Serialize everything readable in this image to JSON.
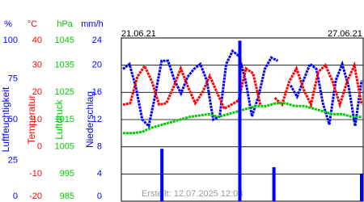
{
  "chart_data": {
    "type": "multi-axis-line",
    "date_labels": [
      "21.06.21",
      "27.06.21"
    ],
    "annotation": "Erstellt: 12.07.2025 12:03",
    "axes": [
      {
        "unit": "%",
        "label": "Luftfeuchtigkeit",
        "color": "#0000ff",
        "ylim": [
          0,
          100
        ],
        "yticks": [
          100,
          75,
          50,
          25,
          0
        ]
      },
      {
        "unit": "°C",
        "label": "Temperatur",
        "color": "#ff0000",
        "ylim": [
          -20,
          40
        ],
        "yticks": [
          40,
          30,
          20,
          10,
          0,
          -10,
          -20
        ]
      },
      {
        "unit": "hPa",
        "label": "Luftdruck",
        "color": "#00cc00",
        "ylim": [
          985,
          1045
        ],
        "yticks": [
          1045,
          1035,
          1025,
          1015,
          1005,
          995,
          985
        ]
      },
      {
        "unit": "mm/h",
        "label": "Niederschlag",
        "color": "#0000ff",
        "ylim": [
          0,
          24
        ],
        "yticks": [
          24,
          20,
          16,
          12,
          8,
          4,
          0
        ]
      }
    ],
    "grid": true,
    "series": [
      {
        "name": "Luftfeuchtigkeit",
        "axis": 0,
        "kind": "line",
        "color": "#0000ff",
        "values": [
          81,
          84,
          70,
          50,
          46,
          65,
          86,
          86,
          74,
          66,
          76,
          81,
          84,
          74,
          50,
          52,
          84,
          92,
          89,
          74,
          52,
          64,
          81,
          88,
          86,
          null,
          71,
          64,
          74,
          84,
          81,
          60,
          47,
          74,
          84,
          70,
          46,
          74
        ]
      },
      {
        "name": "Temperatur",
        "axis": 1,
        "kind": "line",
        "color": "#ff0000",
        "values": [
          15.5,
          16,
          25.8,
          29.7,
          24,
          15.5,
          16,
          22,
          28.8,
          22,
          16,
          20,
          26,
          20,
          14,
          15.5,
          17,
          28.8,
          27,
          15.5,
          null,
          18,
          15.5,
          24,
          28.8,
          21,
          15.5,
          27.5,
          30,
          24,
          15.5,
          24,
          30,
          15.5
        ]
      },
      {
        "name": "Luftdruck",
        "axis": 2,
        "kind": "line",
        "color": "#00cc00",
        "values": [
          1010,
          1010,
          1010.5,
          1012,
          1013,
          1014,
          1015,
          1016,
          1016.5,
          1017,
          1016,
          1017,
          1018,
          1019,
          1020,
          1020,
          1021,
          1021,
          1020,
          1020,
          1019,
          1018,
          1017,
          1017,
          1016,
          1016
        ]
      },
      {
        "name": "Niederschlag",
        "axis": 3,
        "kind": "bar",
        "color": "#0000ff",
        "values": [
          0,
          0,
          0,
          0,
          0,
          0,
          0,
          0,
          0,
          0,
          0,
          0,
          0,
          0,
          0,
          0,
          7.7,
          0,
          0,
          0,
          0,
          0,
          0,
          0,
          0,
          0,
          0,
          0,
          0,
          0,
          0,
          0,
          0,
          0,
          0,
          0,
          0,
          0,
          0,
          0,
          0,
          0,
          0,
          0,
          0,
          0,
          0,
          0,
          23.6,
          0,
          0,
          0,
          0,
          0,
          0,
          0,
          0,
          0,
          0,
          0,
          0,
          0,
          5,
          0,
          0,
          0,
          0,
          0,
          0,
          0,
          0,
          0,
          0,
          0,
          0,
          0,
          0,
          0,
          0,
          0,
          0,
          0,
          0,
          0,
          0,
          0,
          0,
          0,
          0,
          0,
          0,
          0,
          0,
          0,
          0,
          0,
          0,
          0,
          4
        ]
      }
    ]
  }
}
